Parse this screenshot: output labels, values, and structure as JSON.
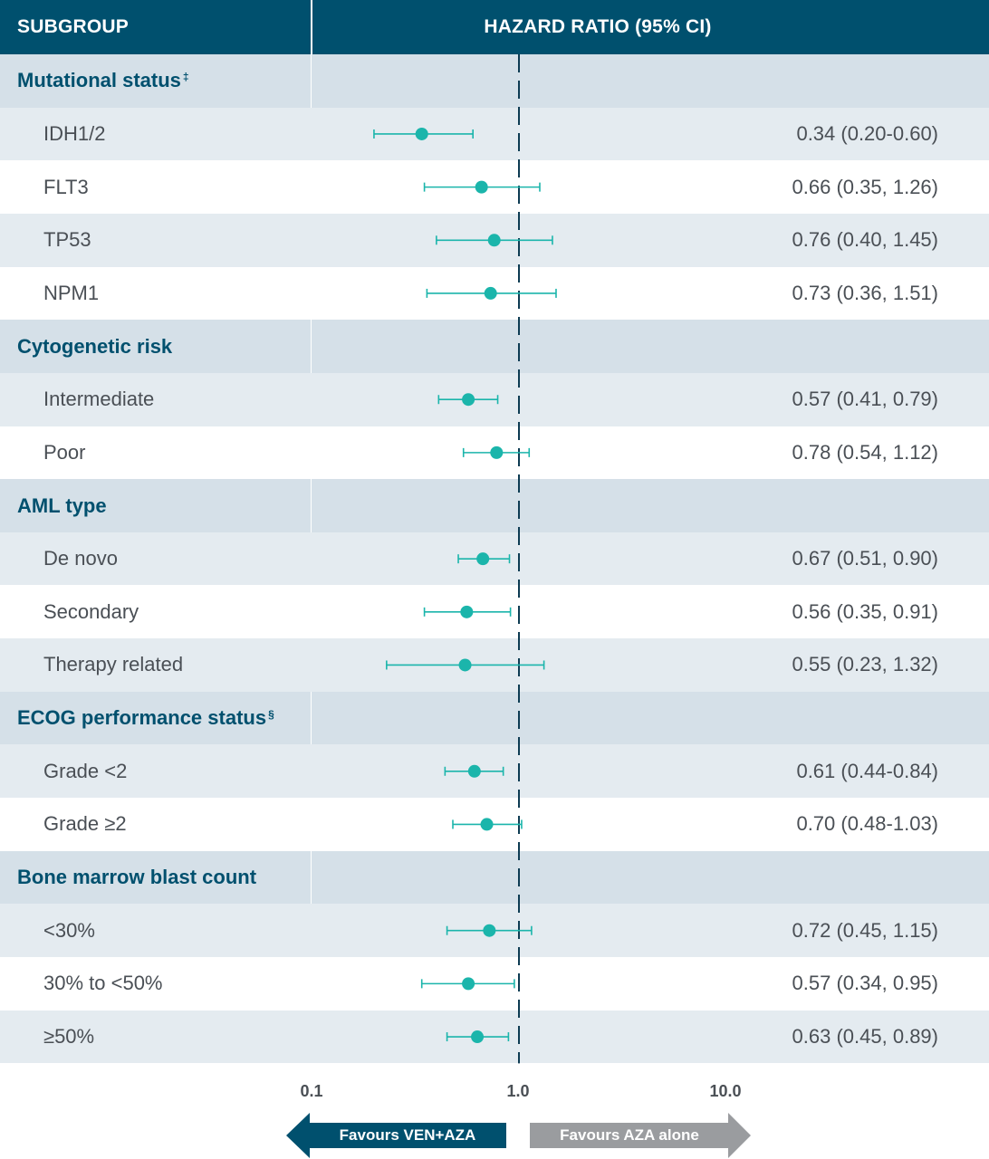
{
  "header": {
    "left": "SUBGROUP",
    "right": "HAZARD RATIO (95% CI)"
  },
  "groups": [
    {
      "label": "Mutational status",
      "sup": "‡",
      "items": [
        {
          "label": "IDH1/2",
          "hr_text": "0.34 (0.20-0.60)"
        },
        {
          "label": "FLT3",
          "hr_text": "0.66 (0.35, 1.26)"
        },
        {
          "label": "TP53",
          "hr_text": "0.76 (0.40, 1.45)"
        },
        {
          "label": "NPM1",
          "hr_text": "0.73 (0.36, 1.51)"
        }
      ]
    },
    {
      "label": "Cytogenetic risk",
      "sup": "",
      "items": [
        {
          "label": "Intermediate",
          "hr_text": "0.57 (0.41, 0.79)"
        },
        {
          "label": "Poor",
          "hr_text": "0.78 (0.54, 1.12)"
        }
      ]
    },
    {
      "label": "AML type",
      "sup": "",
      "items": [
        {
          "label": "De novo",
          "hr_text": "0.67 (0.51, 0.90)"
        },
        {
          "label": "Secondary",
          "hr_text": "0.56 (0.35, 0.91)"
        },
        {
          "label": "Therapy related",
          "hr_text": "0.55 (0.23, 1.32)"
        }
      ]
    },
    {
      "label": "ECOG performance status",
      "sup": "§",
      "items": [
        {
          "label": "Grade <2",
          "hr_text": "0.61 (0.44-0.84)"
        },
        {
          "label": "Grade ≥2",
          "hr_text": "0.70 (0.48-1.03)"
        }
      ]
    },
    {
      "label": "Bone marrow blast count",
      "sup": "",
      "items": [
        {
          "label": "<30%",
          "hr_text": "0.72 (0.45, 1.15)"
        },
        {
          "label": "30% to <50%",
          "hr_text": "0.57 (0.34, 0.95)"
        },
        {
          "label": "≥50%",
          "hr_text": "0.63 (0.45, 0.89)"
        }
      ]
    }
  ],
  "chart_data": {
    "type": "forest",
    "x_scale": "log",
    "xlim": [
      0.1,
      10.0
    ],
    "x_ticks": [
      "0.1",
      "1.0",
      "10.0"
    ],
    "reference_line": 1.0,
    "rows": [
      {
        "group": "Mutational status",
        "label": "IDH1/2",
        "hr": 0.34,
        "lo": 0.2,
        "hi": 0.6
      },
      {
        "group": "Mutational status",
        "label": "FLT3",
        "hr": 0.66,
        "lo": 0.35,
        "hi": 1.26
      },
      {
        "group": "Mutational status",
        "label": "TP53",
        "hr": 0.76,
        "lo": 0.4,
        "hi": 1.45
      },
      {
        "group": "Mutational status",
        "label": "NPM1",
        "hr": 0.73,
        "lo": 0.36,
        "hi": 1.51
      },
      {
        "group": "Cytogenetic risk",
        "label": "Intermediate",
        "hr": 0.57,
        "lo": 0.41,
        "hi": 0.79
      },
      {
        "group": "Cytogenetic risk",
        "label": "Poor",
        "hr": 0.78,
        "lo": 0.54,
        "hi": 1.12
      },
      {
        "group": "AML type",
        "label": "De novo",
        "hr": 0.67,
        "lo": 0.51,
        "hi": 0.9
      },
      {
        "group": "AML type",
        "label": "Secondary",
        "hr": 0.56,
        "lo": 0.35,
        "hi": 0.91
      },
      {
        "group": "AML type",
        "label": "Therapy related",
        "hr": 0.55,
        "lo": 0.23,
        "hi": 1.32
      },
      {
        "group": "ECOG performance status",
        "label": "Grade <2",
        "hr": 0.61,
        "lo": 0.44,
        "hi": 0.84
      },
      {
        "group": "ECOG performance status",
        "label": "Grade ≥2",
        "hr": 0.7,
        "lo": 0.48,
        "hi": 1.03
      },
      {
        "group": "Bone marrow blast count",
        "label": "<30%",
        "hr": 0.72,
        "lo": 0.45,
        "hi": 1.15
      },
      {
        "group": "Bone marrow blast count",
        "label": "30% to <50%",
        "hr": 0.57,
        "lo": 0.34,
        "hi": 0.95
      },
      {
        "group": "Bone marrow blast count",
        "label": "≥50%",
        "hr": 0.63,
        "lo": 0.45,
        "hi": 0.89
      }
    ],
    "favours_left": "Favours VEN+AZA",
    "favours_right": "Favours AZA alone"
  },
  "colors": {
    "header": "#00506e",
    "marker": "#1bb5ab",
    "reference": "#0d3b52",
    "arrow_left": "#00506e",
    "arrow_right": "#9a9c9f"
  }
}
